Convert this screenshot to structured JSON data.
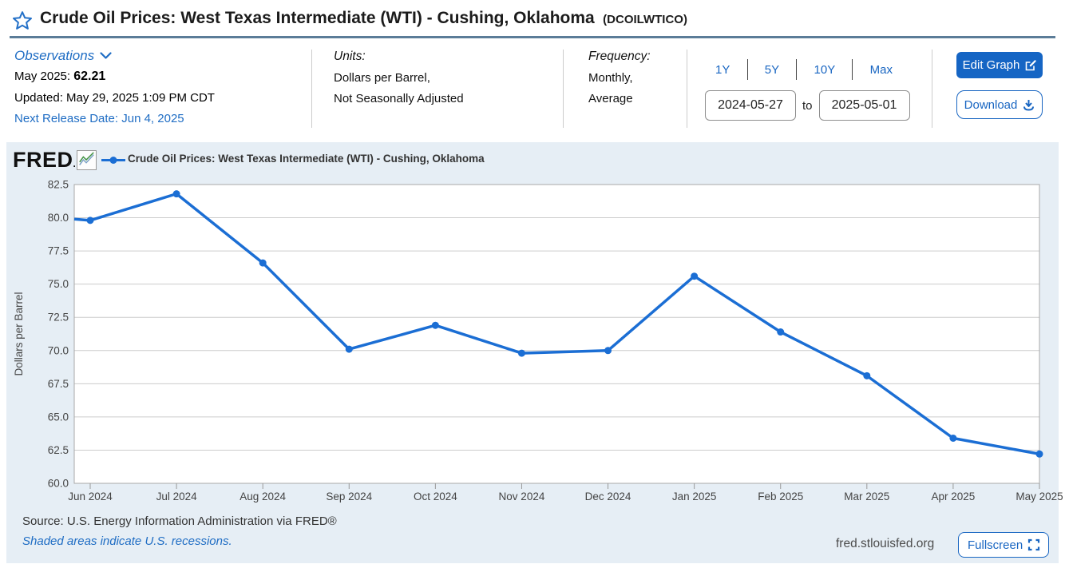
{
  "header": {
    "title": "Crude Oil Prices: West Texas Intermediate (WTI) - Cushing, Oklahoma",
    "series_id": "(DCOILWTICO)"
  },
  "info_bar": {
    "observations": {
      "label": "Observations",
      "latest_label": "May 2025:",
      "latest_value": "62.21",
      "updated": "Updated: May 29, 2025 1:09 PM CDT",
      "next_release": "Next Release Date: Jun 4, 2025"
    },
    "units": {
      "label": "Units:",
      "lines": [
        "Dollars per Barrel,",
        "Not Seasonally Adjusted"
      ]
    },
    "frequency": {
      "label": "Frequency:",
      "lines": [
        "Monthly,",
        "Average"
      ]
    },
    "range": {
      "presets": [
        "1Y",
        "5Y",
        "10Y",
        "Max"
      ],
      "start_date": "2024-05-27",
      "to_label": "to",
      "end_date": "2025-05-01"
    },
    "actions": {
      "edit_graph_label": "Edit Graph",
      "download_label": "Download"
    }
  },
  "chart_panel": {
    "logo_text": "FRED",
    "legend_label": "Crude Oil Prices: West Texas Intermediate (WTI) - Cushing, Oklahoma",
    "footer": {
      "source": "Source: U.S. Energy Information Administration via FRED®",
      "recession_note": "Shaded areas indicate U.S. recessions.",
      "site": "fred.stlouisfed.org",
      "fullscreen_label": "Fullscreen"
    }
  },
  "chart_data": {
    "type": "line",
    "title": "Crude Oil Prices: West Texas Intermediate (WTI) - Cushing, Oklahoma",
    "xlabel": "",
    "ylabel": "Dollars per Barrel",
    "categories": [
      "Jun 2024",
      "Jul 2024",
      "Aug 2024",
      "Sep 2024",
      "Oct 2024",
      "Nov 2024",
      "Dec 2024",
      "Jan 2025",
      "Feb 2025",
      "Mar 2025",
      "Apr 2025",
      "May 2025"
    ],
    "values": [
      79.8,
      81.8,
      76.6,
      70.1,
      71.9,
      69.8,
      70.0,
      75.6,
      71.4,
      68.1,
      63.4,
      62.21
    ],
    "left_edge_entry_value": 79.9,
    "ylim": [
      60.0,
      82.5
    ],
    "ytick_step": 2.5,
    "grid": "horizontal",
    "legend_position": "top-left",
    "line_color": "#1b6ed4"
  },
  "colors": {
    "accent_blue": "#1966c2",
    "button_blue": "#1565c4",
    "line_blue": "#1b6ed4",
    "panel_bg": "#e6eef5",
    "header_rule": "#5b7c98",
    "gridline": "#cccccc"
  }
}
